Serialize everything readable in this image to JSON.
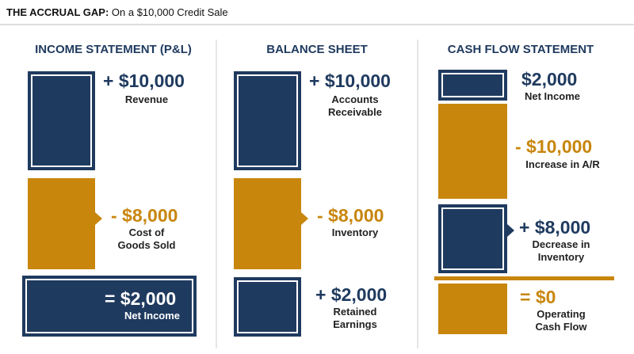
{
  "header": {
    "title_bold": "THE ACCRUAL GAP:",
    "title_rest": "On a $10,000 Credit Sale"
  },
  "columns": [
    {
      "title": "INCOME STATEMENT (P&L)",
      "items": [
        {
          "amount": "+ $10,000",
          "label": [
            "Revenue"
          ]
        },
        {
          "amount": "- $8,000",
          "label": [
            "Cost of",
            "Goods Sold"
          ]
        },
        {
          "amount": "= $2,000",
          "label": [
            "Net Income"
          ]
        }
      ]
    },
    {
      "title": "BALANCE SHEET",
      "items": [
        {
          "amount": "+ $10,000",
          "label": [
            "Accounts",
            "Receivable"
          ]
        },
        {
          "amount": "- $8,000",
          "label": [
            "Inventory"
          ]
        },
        {
          "amount": "+ $2,000",
          "label": [
            "Retained",
            "Earnings"
          ]
        }
      ]
    },
    {
      "title": "CASH FLOW STATEMENT",
      "items": [
        {
          "amount": "$2,000",
          "label": [
            "Net Income"
          ]
        },
        {
          "amount": "- $10,000",
          "label": [
            "Increase in A/R"
          ]
        },
        {
          "amount": "+ $8,000",
          "label": [
            "Decrease in",
            "Inventory"
          ]
        },
        {
          "amount": "= $0",
          "label": [
            "Operating",
            "Cash Flow"
          ]
        }
      ]
    }
  ]
}
